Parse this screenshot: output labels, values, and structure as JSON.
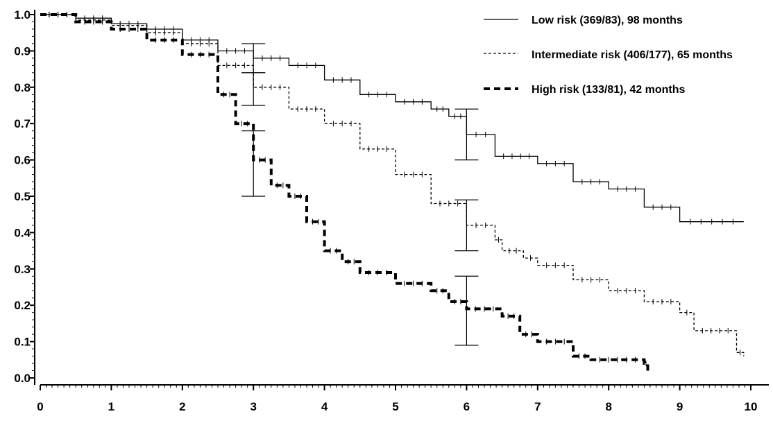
{
  "chart_data": {
    "type": "line",
    "title": "",
    "xlabel": "",
    "ylabel": "",
    "xlim": [
      0,
      10
    ],
    "ylim": [
      0,
      1
    ],
    "x_ticks": [
      "0",
      "1",
      "2",
      "3",
      "4",
      "5",
      "6",
      "7",
      "8",
      "9",
      "10"
    ],
    "y_ticks": [
      "0.0",
      "0.1",
      "0.2",
      "0.3",
      "0.4",
      "0.5",
      "0.6",
      "0.7",
      "0.8",
      "0.9",
      "1.0"
    ],
    "grid": false,
    "legend_position": "top-right",
    "series": [
      {
        "name": "Low risk (369/83), 98 months",
        "style": "solid",
        "points": [
          [
            0,
            1.0
          ],
          [
            0.5,
            0.99
          ],
          [
            1.0,
            0.975
          ],
          [
            1.5,
            0.96
          ],
          [
            2.0,
            0.93
          ],
          [
            2.5,
            0.9
          ],
          [
            3.0,
            0.88
          ],
          [
            3.5,
            0.86
          ],
          [
            4.0,
            0.82
          ],
          [
            4.5,
            0.78
          ],
          [
            5.0,
            0.76
          ],
          [
            5.5,
            0.74
          ],
          [
            5.75,
            0.72
          ],
          [
            6.0,
            0.67
          ],
          [
            6.4,
            0.61
          ],
          [
            7.0,
            0.59
          ],
          [
            7.5,
            0.54
          ],
          [
            8.0,
            0.52
          ],
          [
            8.5,
            0.47
          ],
          [
            9.0,
            0.43
          ],
          [
            9.9,
            0.43
          ]
        ],
        "ci": [
          {
            "x": 3,
            "lo": 0.84,
            "hi": 0.92
          },
          {
            "x": 6,
            "lo": 0.6,
            "hi": 0.74
          }
        ]
      },
      {
        "name": "Intermediate risk (406/177), 65 months",
        "style": "dashed",
        "points": [
          [
            0,
            1.0
          ],
          [
            0.5,
            0.985
          ],
          [
            1.0,
            0.97
          ],
          [
            1.5,
            0.95
          ],
          [
            2.0,
            0.92
          ],
          [
            2.5,
            0.86
          ],
          [
            3.0,
            0.8
          ],
          [
            3.5,
            0.74
          ],
          [
            4.0,
            0.7
          ],
          [
            4.5,
            0.63
          ],
          [
            5.0,
            0.56
          ],
          [
            5.5,
            0.48
          ],
          [
            6.0,
            0.42
          ],
          [
            6.4,
            0.38
          ],
          [
            6.5,
            0.35
          ],
          [
            6.8,
            0.33
          ],
          [
            7.0,
            0.31
          ],
          [
            7.5,
            0.27
          ],
          [
            8.0,
            0.24
          ],
          [
            8.5,
            0.21
          ],
          [
            9.0,
            0.18
          ],
          [
            9.2,
            0.13
          ],
          [
            9.8,
            0.07
          ],
          [
            9.9,
            0.06
          ]
        ],
        "ci": [
          {
            "x": 3,
            "lo": 0.75,
            "hi": 0.84
          },
          {
            "x": 6,
            "lo": 0.35,
            "hi": 0.49
          }
        ]
      },
      {
        "name": "High risk (133/81), 42 months",
        "style": "thick-dashed",
        "points": [
          [
            0,
            1.0
          ],
          [
            0.5,
            0.98
          ],
          [
            1.0,
            0.96
          ],
          [
            1.5,
            0.93
          ],
          [
            2.0,
            0.89
          ],
          [
            2.5,
            0.78
          ],
          [
            2.75,
            0.7
          ],
          [
            3.0,
            0.6
          ],
          [
            3.25,
            0.53
          ],
          [
            3.5,
            0.5
          ],
          [
            3.75,
            0.43
          ],
          [
            4.0,
            0.35
          ],
          [
            4.25,
            0.32
          ],
          [
            4.5,
            0.29
          ],
          [
            5.0,
            0.26
          ],
          [
            5.5,
            0.24
          ],
          [
            5.75,
            0.21
          ],
          [
            6.0,
            0.19
          ],
          [
            6.5,
            0.17
          ],
          [
            6.75,
            0.12
          ],
          [
            7.0,
            0.1
          ],
          [
            7.5,
            0.06
          ],
          [
            7.75,
            0.05
          ],
          [
            8.5,
            0.04
          ],
          [
            8.55,
            0.02
          ]
        ],
        "ci": [
          {
            "x": 3,
            "lo": 0.5,
            "hi": 0.68
          },
          {
            "x": 6,
            "lo": 0.09,
            "hi": 0.28
          }
        ]
      }
    ]
  }
}
